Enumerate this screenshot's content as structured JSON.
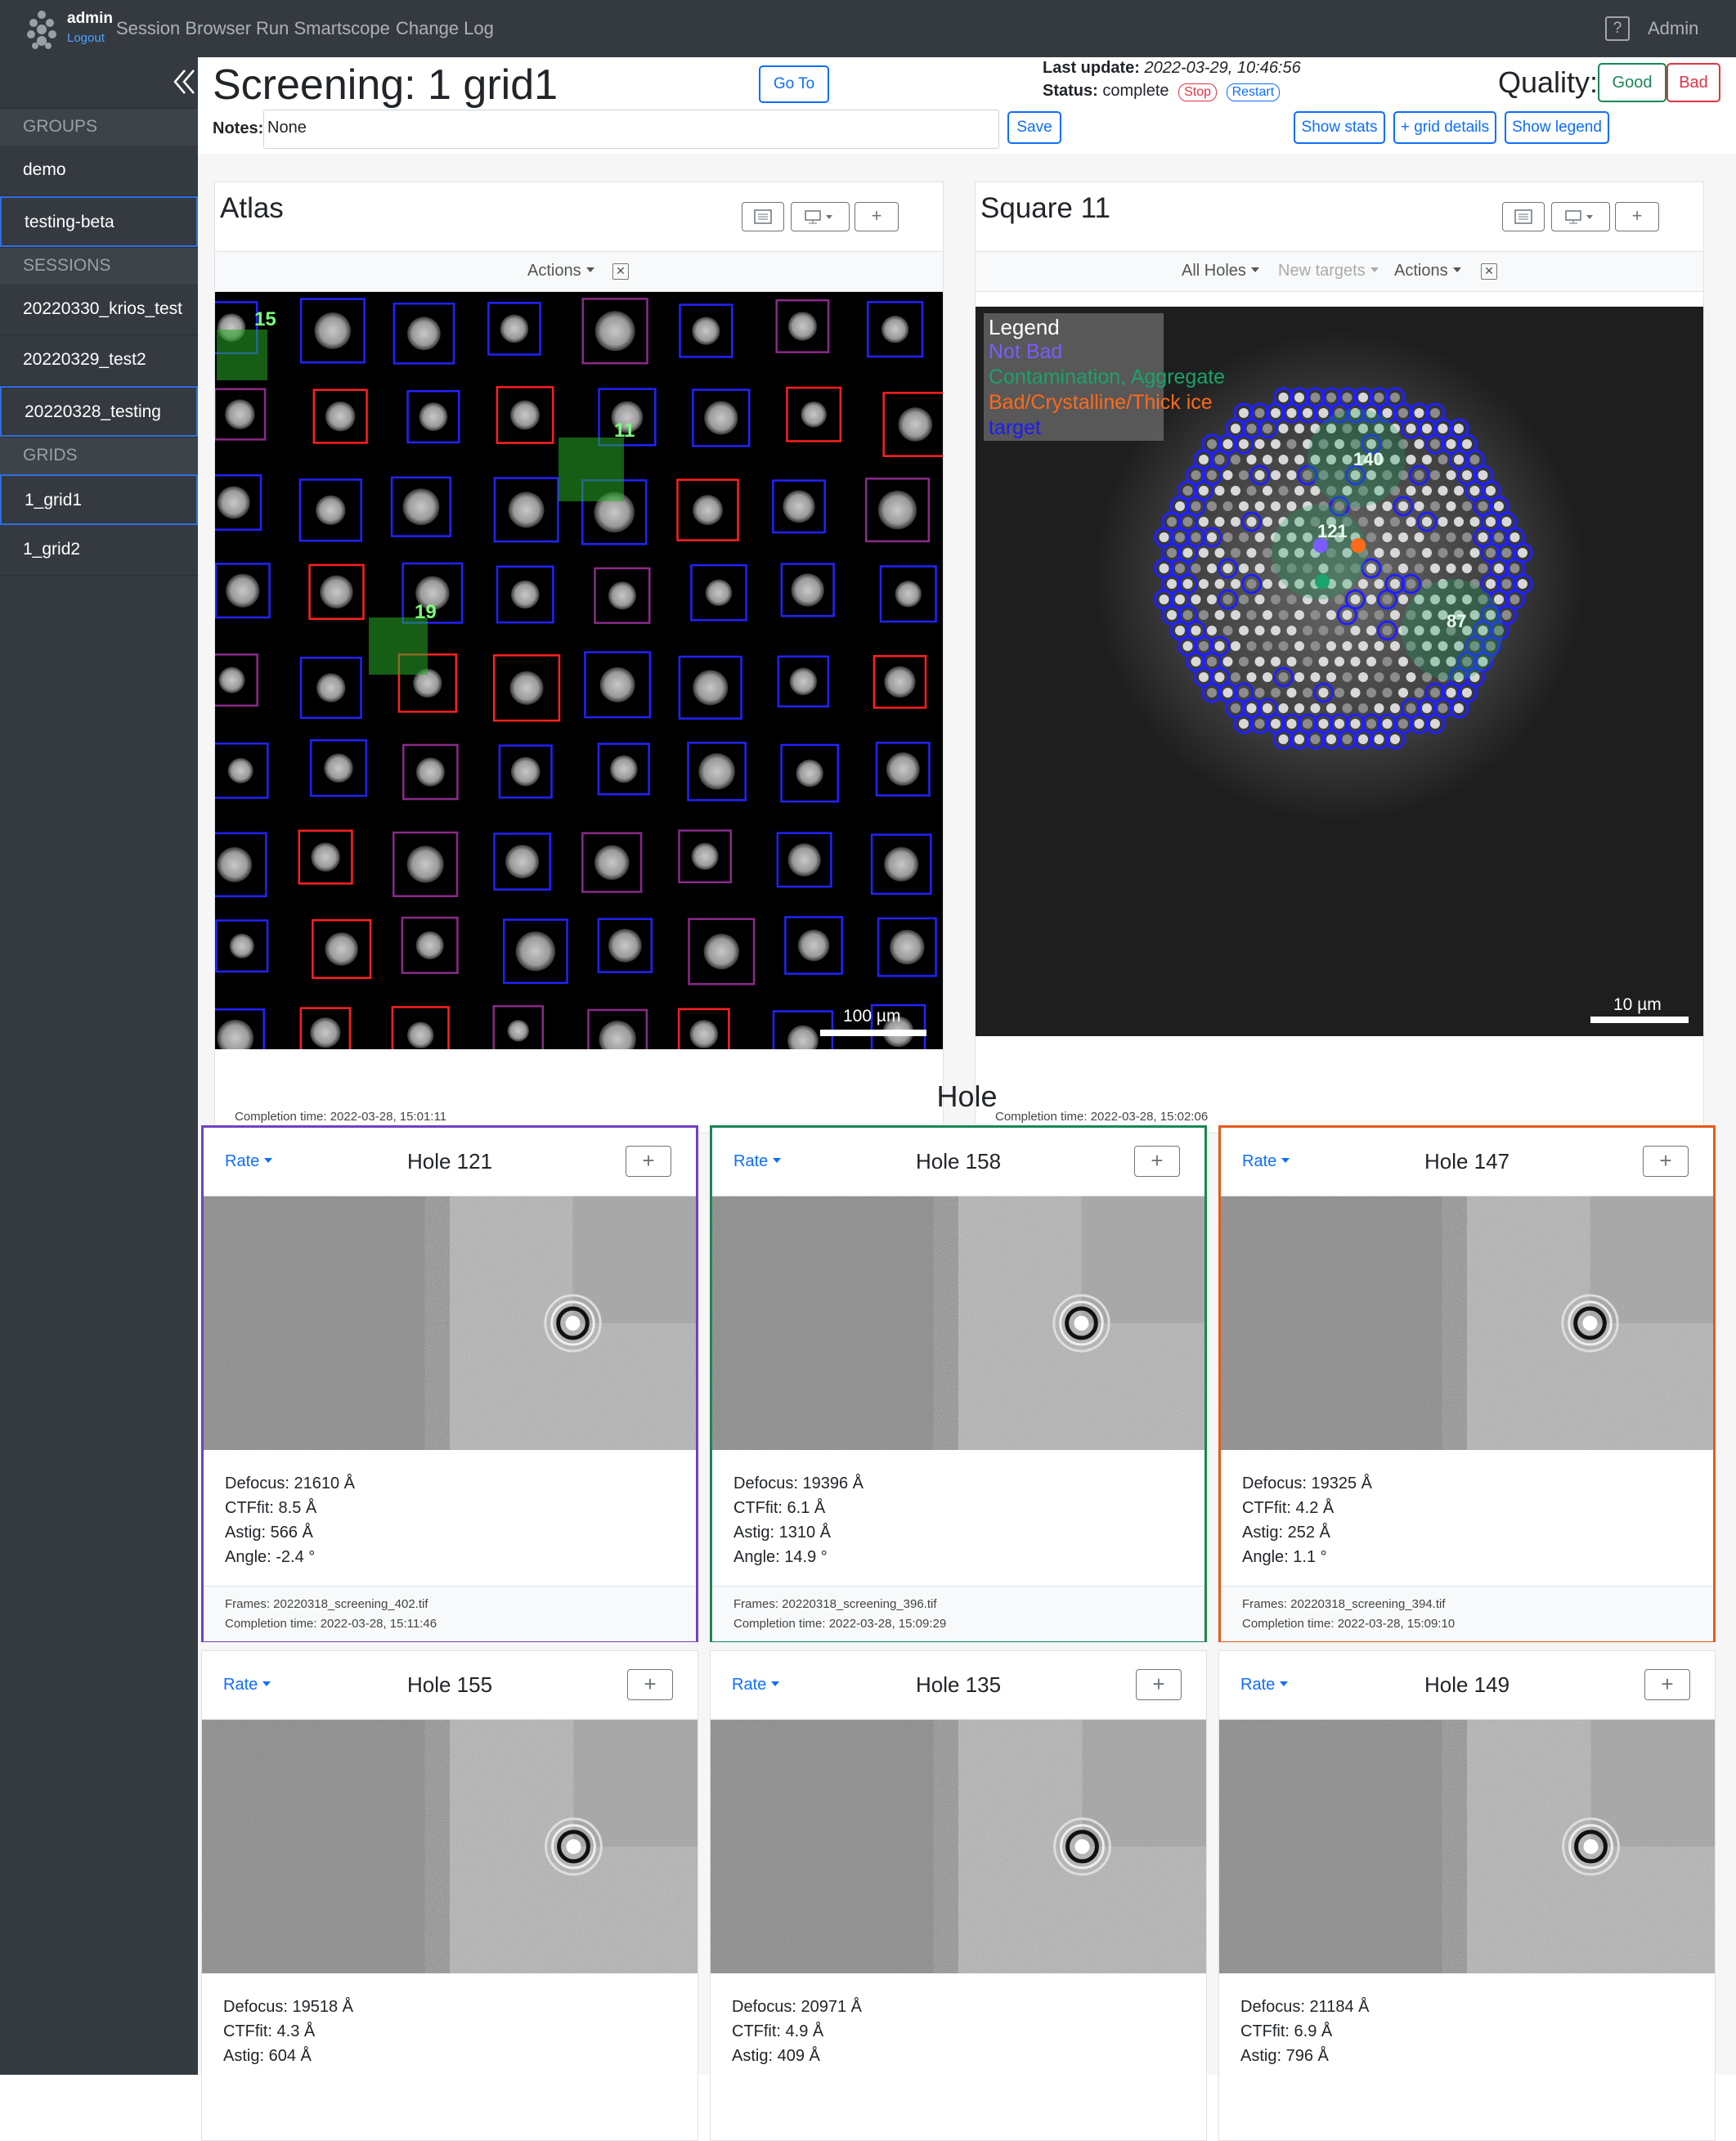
{
  "nav": {
    "user": "admin",
    "logout": "Logout",
    "links": [
      "Session Browser",
      "Run Smartscope",
      "Change Log"
    ],
    "help": "?",
    "admin": "Admin"
  },
  "sidebar": {
    "groups_label": "GROUPS",
    "groups": [
      "demo",
      "testing-beta"
    ],
    "sessions_label": "SESSIONS",
    "sessions": [
      "20220330_krios_test",
      "20220329_test2",
      "20220328_testing"
    ],
    "grids_label": "GRIDS",
    "grids": [
      "1_grid1",
      "1_grid2"
    ]
  },
  "header": {
    "title": "Screening: 1 grid1",
    "goto": "Go To",
    "last_update_label": "Last update:",
    "last_update_value": "2022-03-29, 10:46:56",
    "status_label": "Status:",
    "status_value": "complete",
    "stop": "Stop",
    "restart": "Restart",
    "quality_label": "Quality:",
    "good": "Good",
    "bad": "Bad",
    "notes_label": "Notes:",
    "notes_value": "None",
    "save": "Save",
    "show_stats": "Show stats",
    "grid_details": "+ grid details",
    "show_legend": "Show legend"
  },
  "atlas": {
    "title": "Atlas",
    "actions": "Actions",
    "scale": "100 µm",
    "labels": [
      "15",
      "11",
      "19"
    ],
    "completion": "Completion time: 2022-03-28, 15:01:11"
  },
  "square": {
    "title": "Square 11",
    "all_holes": "All Holes",
    "new_targets": "New targets",
    "actions": "Actions",
    "legend_title": "Legend",
    "legend": [
      {
        "label": "Not Bad",
        "color": "#7b5cff"
      },
      {
        "label": "Contamination, Aggregate",
        "color": "#1aa36a"
      },
      {
        "label": "Bad/Crystalline/Thick ice",
        "color": "#ff6a1a"
      },
      {
        "label": "target",
        "color": "#1a1aff"
      }
    ],
    "labels": [
      "140",
      "121",
      "87"
    ],
    "scale": "10 µm",
    "completion": "Completion time: 2022-03-28, 15:02:06"
  },
  "hole_section": "Hole",
  "holes": [
    {
      "rate": "Rate",
      "title": "Hole 121",
      "defocus": "Defocus: 21610 Å",
      "ctffit": "CTFfit: 8.5 Å",
      "astig": "Astig: 566 Å",
      "angle": "Angle: -2.4 °",
      "frames": "Frames: 20220318_screening_402.tif",
      "completion": "Completion time: 2022-03-28, 15:11:46"
    },
    {
      "rate": "Rate",
      "title": "Hole 158",
      "defocus": "Defocus: 19396 Å",
      "ctffit": "CTFfit: 6.1 Å",
      "astig": "Astig: 1310 Å",
      "angle": "Angle: 14.9 °",
      "frames": "Frames: 20220318_screening_396.tif",
      "completion": "Completion time: 2022-03-28, 15:09:29"
    },
    {
      "rate": "Rate",
      "title": "Hole 147",
      "defocus": "Defocus: 19325 Å",
      "ctffit": "CTFfit: 4.2 Å",
      "astig": "Astig: 252 Å",
      "angle": "Angle: 1.1 °",
      "frames": "Frames: 20220318_screening_394.tif",
      "completion": "Completion time: 2022-03-28, 15:09:10"
    },
    {
      "rate": "Rate",
      "title": "Hole 155",
      "defocus": "Defocus: 19518 Å",
      "ctffit": "CTFfit: 4.3 Å",
      "astig": "Astig: 604 Å"
    },
    {
      "rate": "Rate",
      "title": "Hole 135",
      "defocus": "Defocus: 20971 Å",
      "ctffit": "CTFfit: 4.9 Å",
      "astig": "Astig: 409 Å"
    },
    {
      "rate": "Rate",
      "title": "Hole 149",
      "defocus": "Defocus: 21184 Å",
      "ctffit": "CTFfit: 6.9 Å",
      "astig": "Astig: 796 Å"
    }
  ],
  "icons": {
    "plus": "+",
    "close": "✕",
    "list": "list-icon",
    "display": "monitor-icon",
    "collapse": "chevron-double-left-icon"
  }
}
